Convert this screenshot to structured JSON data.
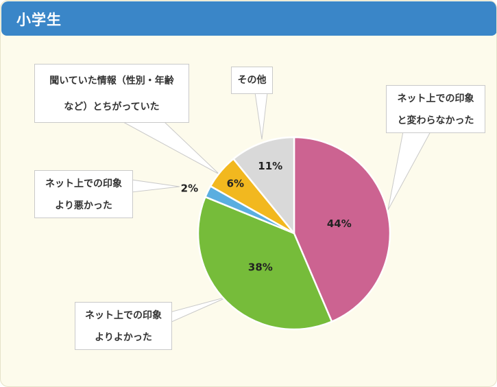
{
  "header": {
    "title": "小学生"
  },
  "colors": {
    "header_bg": "#3a86c8",
    "panel_bg": "#fdfbec",
    "slice_better": "#76bc3a",
    "slice_worse": "#5aaee0",
    "slice_wrong_info": "#f2b81f",
    "slice_other": "#d9d9d9",
    "slice_same": "#cc6391"
  },
  "callouts": {
    "same": {
      "line1": "ネット上での印象",
      "line2": "と変わらなかった"
    },
    "other": {
      "line1": "その他"
    },
    "wrong_info": {
      "line1": "聞いていた情報（性別・年齢",
      "line2": "など）とちがっていた"
    },
    "worse": {
      "line1": "ネット上での印象",
      "line2": "より悪かった"
    },
    "better": {
      "line1": "ネット上での印象",
      "line2": "よりよかった"
    }
  },
  "chart_data": {
    "type": "pie",
    "start": "12 o'clock",
    "direction": "clockwise",
    "slices": [
      {
        "key": "same",
        "value": 44,
        "label": "44%",
        "color": "#cc6391"
      },
      {
        "key": "better",
        "value": 38,
        "label": "38%",
        "color": "#76bc3a"
      },
      {
        "key": "worse",
        "value": 2,
        "label": "2%",
        "color": "#5aaee0"
      },
      {
        "key": "wrong_info",
        "value": 6,
        "label": "6%",
        "color": "#f2b81f"
      },
      {
        "key": "other",
        "value": 11,
        "label": "11%",
        "color": "#d9d9d9"
      }
    ]
  }
}
